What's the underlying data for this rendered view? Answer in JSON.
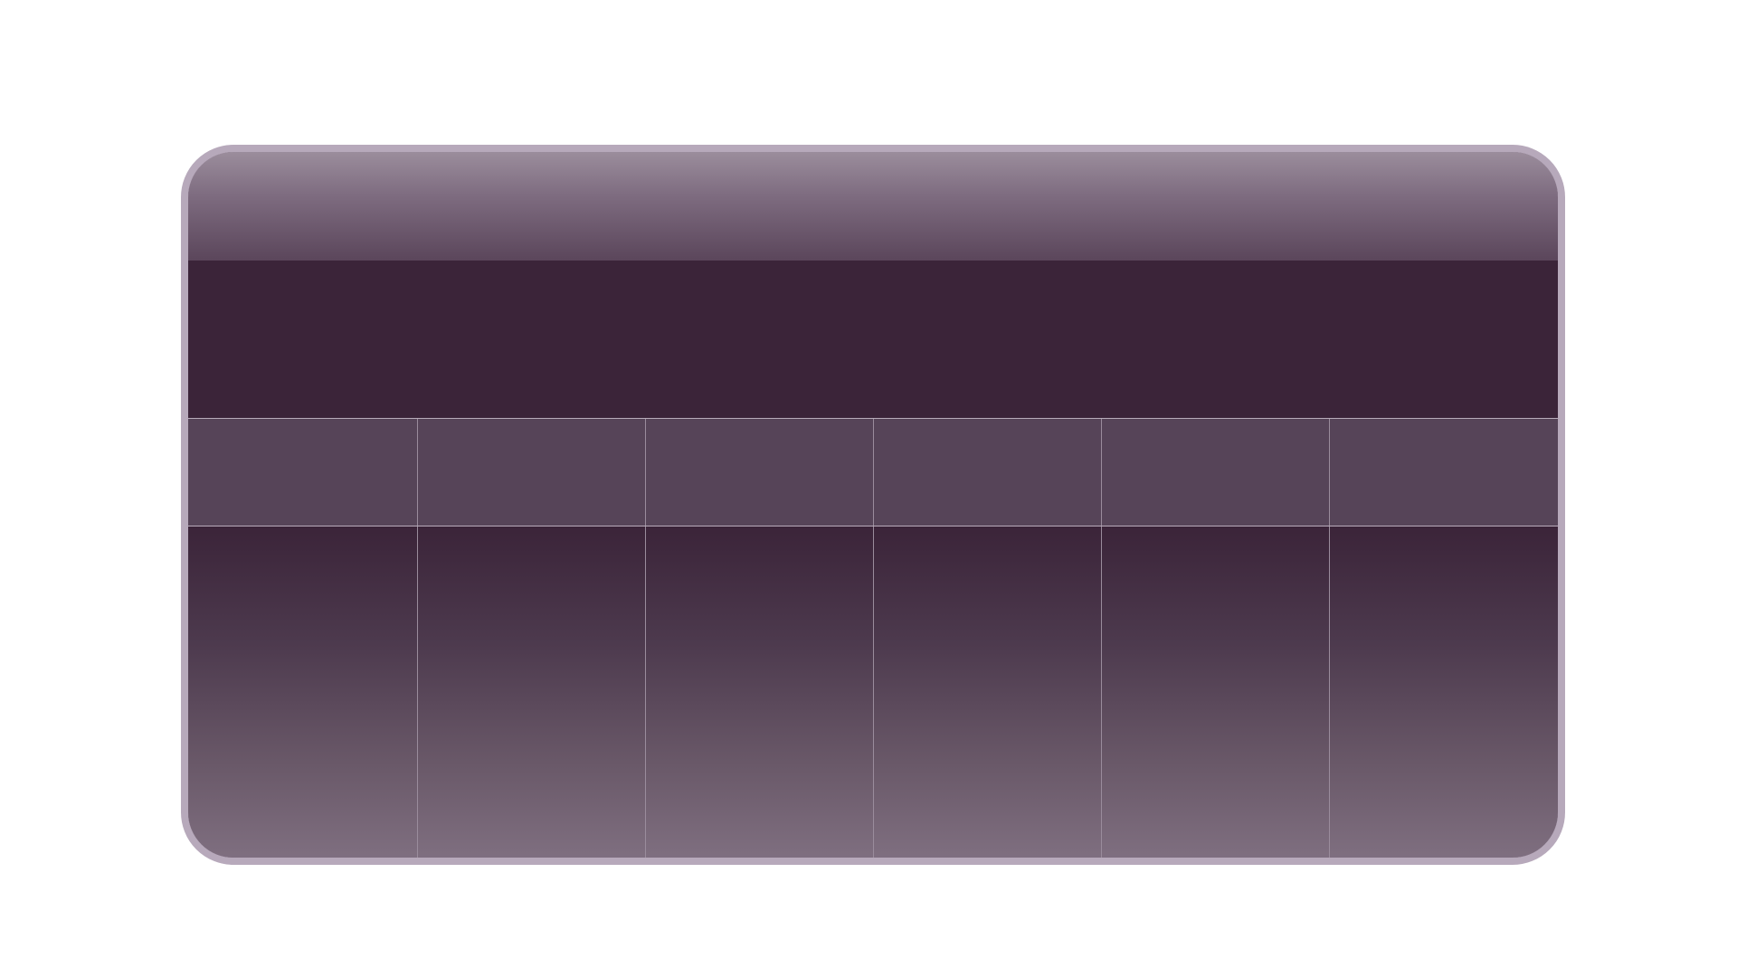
{
  "panel": {
    "title": "",
    "columns": [
      "",
      "",
      "",
      "",
      "",
      ""
    ],
    "cells": [
      "",
      "",
      "",
      "",
      "",
      ""
    ]
  },
  "colors": {
    "frame": "#b7a9bb",
    "header_dark": "#3b2439",
    "header_row": "#564458",
    "body_bottom": "#807081"
  }
}
